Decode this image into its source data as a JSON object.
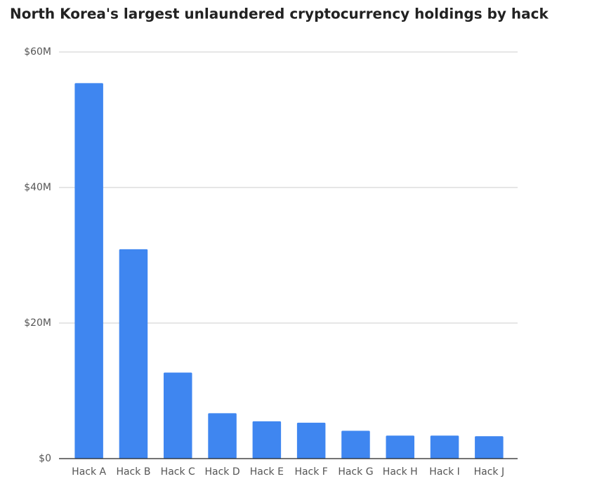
{
  "chart_data": {
    "type": "bar",
    "title": "North Korea's largest unlaundered cryptocurrency holdings by hack",
    "categories": [
      "Hack A",
      "Hack B",
      "Hack C",
      "Hack D",
      "Hack E",
      "Hack F",
      "Hack G",
      "Hack H",
      "Hack I",
      "Hack J"
    ],
    "values": [
      55400000,
      30900000,
      12700000,
      6700000,
      5500000,
      5300000,
      4100000,
      3400000,
      3400000,
      3300000
    ],
    "color": "#3f86f0",
    "ylim": [
      0,
      60000000
    ],
    "yticks": [
      {
        "value": 0,
        "label": "$0"
      },
      {
        "value": 20000000,
        "label": "$20M"
      },
      {
        "value": 40000000,
        "label": "$40M"
      },
      {
        "value": 60000000,
        "label": "$60M"
      }
    ],
    "grid": true
  }
}
